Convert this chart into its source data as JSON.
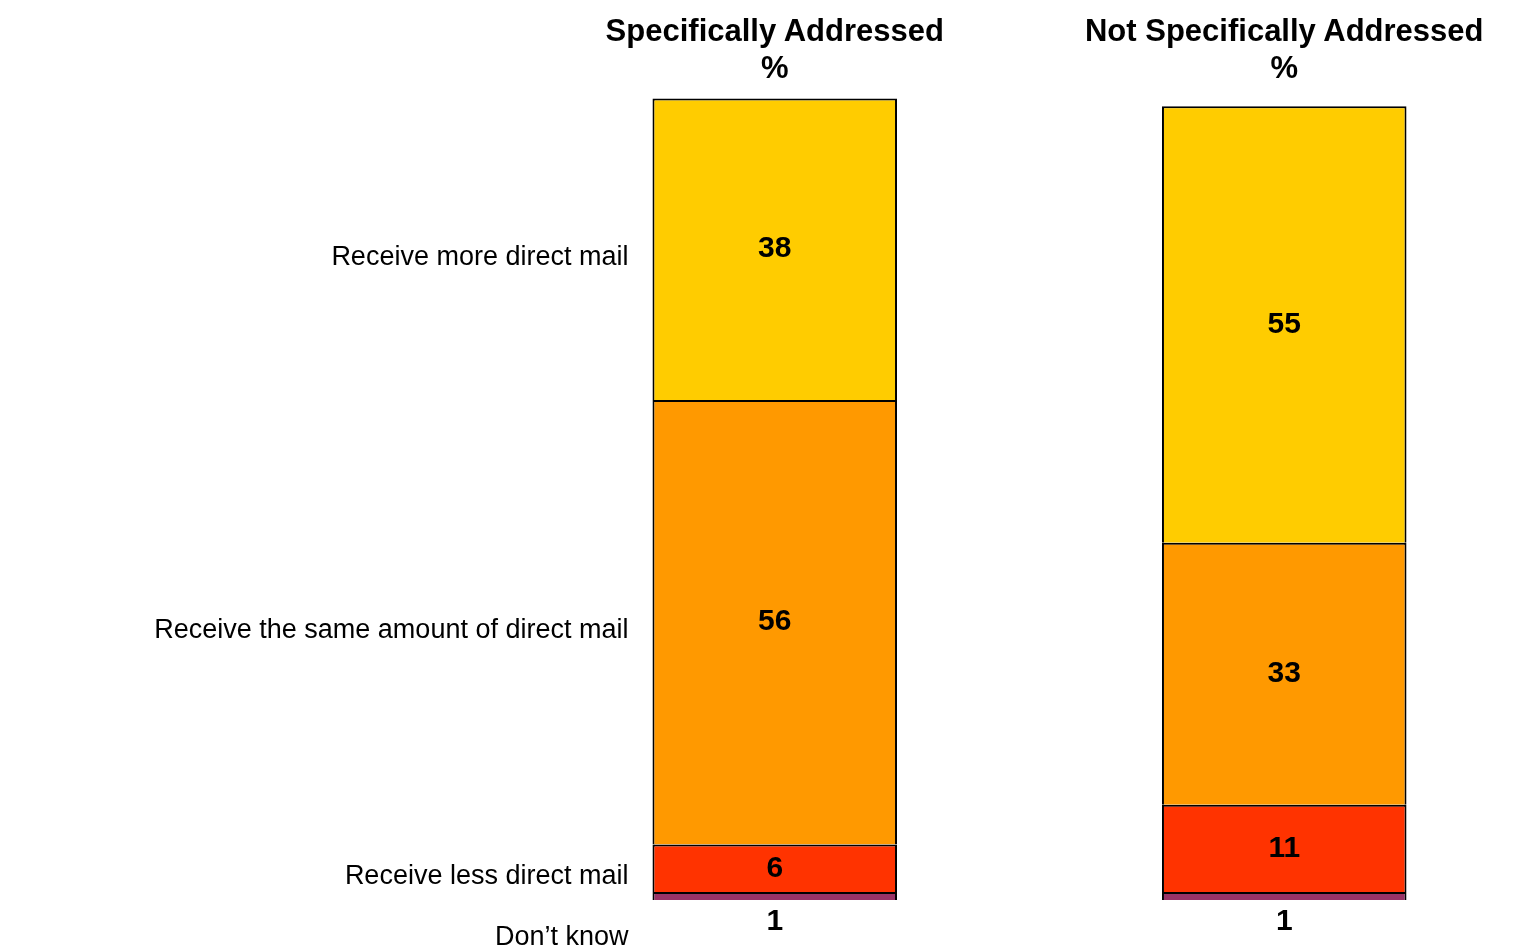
{
  "chart_data": {
    "type": "bar",
    "stacked": true,
    "data_labels": true,
    "legend": false,
    "grid": false,
    "categories": [
      "Specifically Addressed\n%",
      "Not Specifically Addressed\n%"
    ],
    "series": [
      {
        "name": "Don’t know",
        "color": "#993366",
        "values": [
          1,
          1
        ]
      },
      {
        "name": "Receive less direct mail",
        "color": "#ff3300",
        "values": [
          6,
          11
        ]
      },
      {
        "name": "Receive the same amount of direct mail",
        "color": "#ff9900",
        "values": [
          56,
          33
        ]
      },
      {
        "name": "Receive more direct mail",
        "color": "#ffcc00",
        "values": [
          38,
          55
        ]
      }
    ]
  }
}
